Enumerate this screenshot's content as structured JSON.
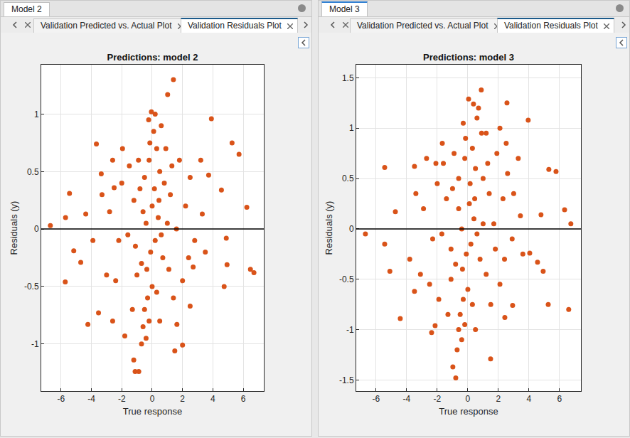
{
  "panels": [
    {
      "tab": "Model 2",
      "subtabs": [
        "Validation Predicted vs. Actual Plot",
        "Validation Residuals Plot"
      ],
      "active": 1
    },
    {
      "tab": "Model 3",
      "subtabs": [
        "Validation Predicted vs. Actual Plot",
        "Validation Residuals Plot"
      ],
      "active": 1
    }
  ],
  "chart_data": [
    {
      "type": "scatter",
      "title": "Predictions: model 2",
      "x_label": "True response",
      "y_label": "Residuals (y)",
      "color": "#d95319",
      "marker": "circle",
      "grid": true,
      "hline": 0,
      "xlim": [
        -7.3,
        7.35
      ],
      "ylim": [
        -1.41,
        1.43
      ],
      "xticks": [
        -6,
        -4,
        -2,
        0,
        2,
        4,
        6
      ],
      "yticks": [
        -1,
        -0.5,
        0,
        0.5,
        1
      ],
      "x": [
        -6.7,
        -5.44,
        -5.72,
        -3.67,
        1.4,
        1.02,
        3.9,
        5.26,
        5.72,
        6.23,
        6.47,
        6.7,
        4.74,
        1.49,
        2,
        -1.12,
        -0.88,
        -1.21,
        -4.23,
        -3.53,
        -4.7,
        -5.16,
        -5.7,
        -2.5,
        -3.35,
        -1.95,
        -0.23,
        -0.05,
        4.56,
        4.88,
        4.93,
        3.72,
        3.3,
        2.7,
        2.5,
        1.63,
        -1.8,
        -2.6,
        -3.9,
        -4.37,
        0.1,
        0.3,
        -0.2,
        0.5,
        -0.5,
        0.8,
        -0.8,
        1.2,
        -1.2,
        0,
        0.4,
        -0.4,
        1.6,
        -1.6,
        0.2,
        -0.1,
        0.7,
        -0.7,
        1.1,
        -1.0,
        0,
        -0.3,
        0.3,
        -0.5,
        -0.6,
        -0.4,
        -0.7,
        2.2,
        -2.2,
        2.5,
        -2.8,
        2.8,
        -2.4,
        1.8,
        -1.5,
        1.4,
        -1.3,
        0.6,
        0.2,
        0.9,
        -0.9,
        3.2,
        -3.0,
        3.5,
        -3.3,
        2,
        -2,
        0.5,
        -0.2,
        1.0,
        -0.6,
        0.15,
        -0.35,
        1.3,
        -1.1,
        0.6,
        -0.15,
        2.4,
        -2.6,
        0.45
      ],
      "values": [
        0.03,
        0.31,
        -0.46,
        0.74,
        1.3,
        1.17,
        0.96,
        0.75,
        0.65,
        0.19,
        -0.35,
        -0.38,
        -0.5,
        -1.06,
        -1.01,
        -1.24,
        -1.24,
        -1.14,
        -0.83,
        -0.73,
        -0.29,
        -0.19,
        0.1,
        0.36,
        0.48,
        0.7,
        0.95,
        1.02,
        0.34,
        -0.08,
        -0.31,
        0.47,
        0.13,
        -0.33,
        -0.67,
        -0.83,
        -0.93,
        -0.8,
        -0.1,
        0.13,
        0.85,
        0.7,
        0.6,
        0.5,
        0.45,
        0.4,
        0.35,
        0.3,
        0.25,
        0.2,
        0.1,
        0.05,
        0,
        -0.05,
        -0.1,
        -0.2,
        -0.25,
        -0.3,
        -0.35,
        -0.4,
        -0.5,
        -0.6,
        -0.55,
        -0.7,
        -0.85,
        -0.95,
        -1.0,
        0.2,
        -0.1,
        0.45,
        0.15,
        -0.1,
        -0.45,
        0.6,
        0.55,
        -0.6,
        -0.7,
        0.9,
        1.0,
        0.7,
        0.6,
        0.6,
        -0.4,
        -0.2,
        0.3,
        -0.45,
        0.4,
        -0.8,
        -0.8,
        0.05,
        0.15,
        0.35,
        -0.35,
        0.55,
        -0.15,
        -0.05,
        0.75,
        -0.25,
        0.6,
        0.25
      ]
    },
    {
      "type": "scatter",
      "title": "Predictions: model 3",
      "x_label": "True response",
      "y_label": "Residuals (y)",
      "color": "#d95319",
      "marker": "circle",
      "grid": true,
      "hline": 0,
      "xlim": [
        -7.3,
        7.4
      ],
      "ylim": [
        -1.61,
        1.63
      ],
      "xticks": [
        -6,
        -4,
        -2,
        0,
        2,
        4,
        6
      ],
      "yticks": [
        -1.5,
        -1,
        -0.5,
        0,
        0.5,
        1,
        1.5
      ],
      "x": [
        -6.7,
        -5.44,
        -5.44,
        -4.74,
        -5.1,
        -4.42,
        -3.49,
        -2.37,
        0.88,
        2.56,
        3.95,
        2.51,
        5.77,
        5.3,
        6.33,
        6.74,
        6.6,
        5.26,
        4.93,
        4.56,
        3.44,
        1.49,
        -0.79,
        -0.98,
        -2.14,
        -3.49,
        2.42,
        2.93,
        4.05,
        4.79,
        -2.09,
        -1.67,
        0.05,
        0.37,
        0.6,
        0.9,
        0.3,
        -0.2,
        0.5,
        -0.6,
        1.0,
        -1.0,
        1.4,
        -1.4,
        0.1,
        0.4,
        -0.4,
        1.7,
        -1.7,
        0.2,
        -0.1,
        0.8,
        -0.8,
        1.2,
        -1.1,
        0,
        -0.3,
        0.3,
        -0.5,
        -0.6,
        -0.4,
        -0.7,
        2.3,
        -2.3,
        2.6,
        -2.9,
        2.9,
        -2.5,
        1.9,
        -1.6,
        1.5,
        -1.3,
        0.7,
        1.2,
        -0.9,
        3.3,
        -3.1,
        3.6,
        -3.4,
        2.1,
        -2.0,
        0.5,
        -0.2,
        1.0,
        -0.6,
        0.15,
        -0.35,
        1.3,
        -1.1,
        0.6,
        -0.15,
        2.4,
        -2.7,
        0.45,
        1.8,
        -1.9,
        3.0,
        -3.8,
        2.1,
        -0.3
      ],
      "values": [
        -0.05,
        0.61,
        -0.15,
        0.17,
        -0.42,
        -0.89,
        0.62,
        -1.03,
        1.38,
        1.25,
        1.08,
        0.85,
        0.57,
        0.59,
        0.19,
        0.05,
        -0.8,
        -0.75,
        -0.42,
        -0.33,
        0.13,
        -1.29,
        -1.48,
        -1.37,
        -0.96,
        -0.62,
        -0.88,
        -0.76,
        -0.24,
        0.14,
        0.65,
        0.85,
        1.29,
        1.24,
        1.1,
        0.95,
        0.8,
        0.7,
        0.6,
        0.5,
        0.5,
        0.4,
        0.35,
        0.3,
        0.25,
        0.1,
        0,
        0.05,
        -0.05,
        -0.15,
        -0.25,
        -0.3,
        -0.35,
        -0.45,
        -0.5,
        -0.6,
        -0.7,
        -0.75,
        -0.85,
        -1.0,
        -1.1,
        -1.2,
        0.3,
        -0.1,
        0.55,
        0.2,
        -0.1,
        -0.55,
        0.75,
        0.65,
        -0.75,
        -0.85,
        1.2,
        0.95,
        0.75,
        0.7,
        -0.45,
        -0.25,
        0.35,
        -0.55,
        0.45,
        -1.0,
        -0.95,
        0.05,
        0.2,
        0.45,
        -0.4,
        0.65,
        -0.2,
        -0.05,
        0.9,
        -0.3,
        0.7,
        0.3,
        -0.2,
        -0.7,
        0.35,
        -0.3,
        1.0,
        1.05
      ]
    }
  ]
}
